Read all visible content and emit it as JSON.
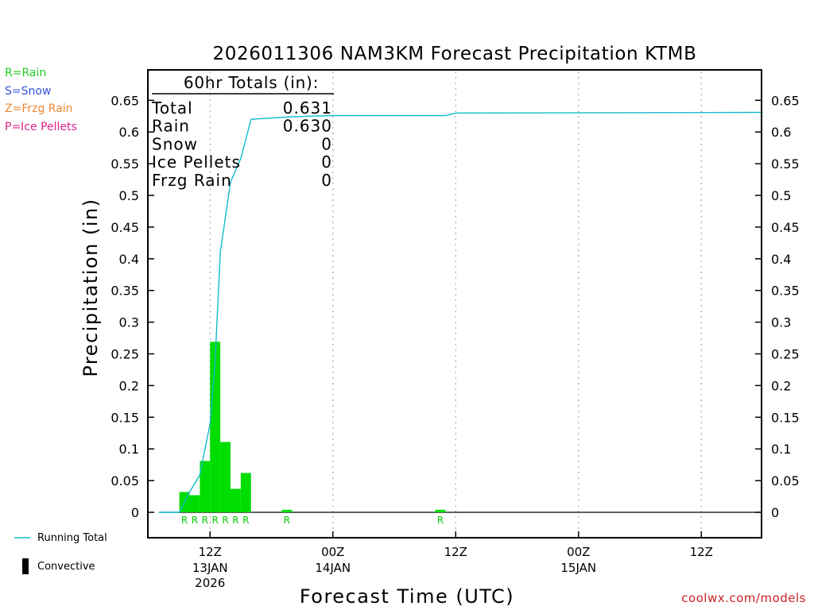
{
  "chart_data": {
    "type": "bar",
    "title": "2026011306 NAM3KM Forecast Precipitation KTMB",
    "xlabel": "Forecast Time (UTC)",
    "ylabel": "Precipitation (in)",
    "ylim": [
      -0.04,
      0.69
    ],
    "yticks": [
      "0.65",
      "0.6",
      "0.55",
      "0.5",
      "0.45",
      "0.4",
      "0.35",
      "0.3",
      "0.25",
      "0.2",
      "0.15",
      "0.1",
      "0.05",
      "0"
    ],
    "ytick_values": [
      0.65,
      0.6,
      0.55,
      0.5,
      0.45,
      0.4,
      0.35,
      0.3,
      0.25,
      0.2,
      0.15,
      0.1,
      0.05,
      0
    ],
    "x_unit": "forecast hour",
    "xlim": [
      0,
      60
    ],
    "xticks": [
      {
        "hour": 6,
        "line1": "12Z",
        "line2": "13JAN",
        "line3": "2026"
      },
      {
        "hour": 18,
        "line1": "00Z",
        "line2": "14JAN",
        "line3": ""
      },
      {
        "hour": 30,
        "line1": "12Z",
        "line2": "",
        "line3": ""
      },
      {
        "hour": 42,
        "line1": "00Z",
        "line2": "15JAN",
        "line3": ""
      },
      {
        "hour": 54,
        "line1": "12Z",
        "line2": "",
        "line3": ""
      }
    ],
    "bars": [
      {
        "hour": 4,
        "value": 0.032,
        "ptype": "R"
      },
      {
        "hour": 5,
        "value": 0.027,
        "ptype": "R"
      },
      {
        "hour": 6,
        "value": 0.081,
        "ptype": "R"
      },
      {
        "hour": 7,
        "value": 0.269,
        "ptype": "R"
      },
      {
        "hour": 8,
        "value": 0.111,
        "ptype": "R"
      },
      {
        "hour": 9,
        "value": 0.037,
        "ptype": "R"
      },
      {
        "hour": 10,
        "value": 0.062,
        "ptype": "R"
      },
      {
        "hour": 14,
        "value": 0.004,
        "ptype": "R"
      },
      {
        "hour": 29,
        "value": 0.004,
        "ptype": "R"
      }
    ],
    "running_total": {
      "name": "Running Total",
      "hours": [
        1,
        2,
        3,
        4,
        5,
        6,
        6.5,
        7,
        8,
        9,
        10,
        14,
        18,
        24,
        29,
        30,
        60
      ],
      "values": [
        0,
        0,
        0,
        0.032,
        0.059,
        0.14,
        0.24,
        0.41,
        0.521,
        0.558,
        0.62,
        0.624,
        0.626,
        0.626,
        0.626,
        0.63,
        0.631
      ]
    },
    "totals_box": {
      "heading": "60hr Totals (in):",
      "rows": [
        {
          "label": "Total",
          "value": "0.631"
        },
        {
          "label": "Rain",
          "value": "0.630"
        },
        {
          "label": "Snow",
          "value": "0"
        },
        {
          "label": "Ice Pellets",
          "value": "0"
        },
        {
          "label": "Frzg Rain",
          "value": "0"
        }
      ]
    },
    "ptype_legend": [
      {
        "text": "R=Rain",
        "color": "#22cc22"
      },
      {
        "text": "S=Snow",
        "color": "#3355dd"
      },
      {
        "text": "Z=Frzg Rain",
        "color": "#ee8833"
      },
      {
        "text": "P=Ice Pellets",
        "color": "#dd2288"
      }
    ],
    "series_legend": {
      "running_total": "Running Total",
      "convective": "Convective"
    },
    "colors": {
      "bar": "#00dd00",
      "line": "#11bbcc",
      "grid": "#aaaaaa",
      "rain_label": "#00cc00"
    }
  },
  "credit": "coolwx.com/models"
}
